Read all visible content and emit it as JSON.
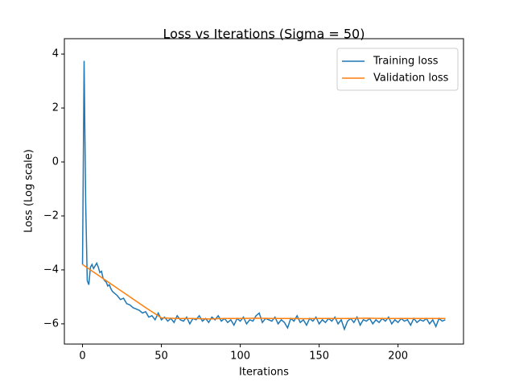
{
  "chart_data": {
    "type": "line",
    "title": "Loss vs Iterations (Sigma = 50)",
    "xlabel": "Iterations",
    "ylabel": "Loss (Log scale)",
    "x": [
      0,
      1,
      2,
      3,
      4,
      5,
      6,
      7,
      8,
      9,
      10,
      11,
      12,
      13,
      14,
      15,
      16,
      17,
      18,
      19,
      20,
      22,
      24,
      26,
      28,
      30,
      32,
      34,
      36,
      38,
      40,
      42,
      44,
      46,
      48,
      50,
      52,
      54,
      56,
      58,
      60,
      62,
      64,
      66,
      68,
      70,
      72,
      74,
      76,
      78,
      80,
      82,
      84,
      86,
      88,
      90,
      92,
      94,
      96,
      98,
      100,
      102,
      104,
      106,
      108,
      110,
      112,
      114,
      116,
      118,
      120,
      122,
      124,
      126,
      128,
      130,
      132,
      134,
      136,
      138,
      140,
      142,
      144,
      146,
      148,
      150,
      152,
      154,
      156,
      158,
      160,
      162,
      164,
      166,
      168,
      170,
      172,
      174,
      176,
      178,
      180,
      182,
      184,
      186,
      188,
      190,
      192,
      194,
      196,
      198,
      200,
      202,
      204,
      206,
      208,
      210,
      212,
      214,
      216,
      218,
      220,
      222,
      224,
      226,
      228,
      230
    ],
    "series": [
      {
        "name": "Training loss",
        "color": "#1f77b4",
        "values": [
          -3.8,
          3.75,
          -1.5,
          -4.4,
          -4.55,
          -3.9,
          -3.8,
          -3.95,
          -3.85,
          -3.75,
          -3.9,
          -4.1,
          -4.05,
          -4.3,
          -4.4,
          -4.45,
          -4.6,
          -4.55,
          -4.7,
          -4.8,
          -4.85,
          -4.95,
          -5.1,
          -5.05,
          -5.25,
          -5.3,
          -5.4,
          -5.45,
          -5.5,
          -5.6,
          -5.55,
          -5.75,
          -5.7,
          -5.85,
          -5.6,
          -5.85,
          -5.75,
          -5.9,
          -5.8,
          -5.95,
          -5.7,
          -5.85,
          -5.9,
          -5.75,
          -6.0,
          -5.8,
          -5.85,
          -5.7,
          -5.9,
          -5.8,
          -5.95,
          -5.75,
          -5.85,
          -5.7,
          -5.9,
          -5.8,
          -5.95,
          -5.85,
          -6.05,
          -5.8,
          -5.9,
          -5.75,
          -6.0,
          -5.85,
          -5.9,
          -5.7,
          -5.6,
          -5.95,
          -5.8,
          -5.85,
          -5.9,
          -5.75,
          -6.0,
          -5.85,
          -5.95,
          -6.15,
          -5.8,
          -5.9,
          -5.7,
          -5.95,
          -5.85,
          -6.05,
          -5.8,
          -5.9,
          -5.75,
          -6.0,
          -5.85,
          -5.95,
          -5.8,
          -5.9,
          -5.75,
          -6.0,
          -5.85,
          -6.2,
          -5.9,
          -5.8,
          -5.95,
          -5.75,
          -6.05,
          -5.85,
          -5.9,
          -5.8,
          -6.0,
          -5.85,
          -5.95,
          -5.8,
          -5.9,
          -5.75,
          -6.0,
          -5.85,
          -5.95,
          -5.8,
          -5.9,
          -5.85,
          -6.05,
          -5.8,
          -5.95,
          -5.85,
          -5.9,
          -5.8,
          -6.0,
          -5.85,
          -6.1,
          -5.8,
          -5.9,
          -5.85
        ]
      },
      {
        "name": "Validation loss",
        "color": "#ff7f0e",
        "x": [
          0,
          10,
          20,
          30,
          40,
          50,
          60,
          70,
          80,
          90,
          100,
          110,
          120,
          130,
          140,
          150,
          160,
          170,
          180,
          190,
          200,
          210,
          220,
          230
        ],
        "values": [
          -3.8,
          -4.2,
          -4.6,
          -5.0,
          -5.4,
          -5.78,
          -5.8,
          -5.8,
          -5.82,
          -5.8,
          -5.8,
          -5.79,
          -5.8,
          -5.8,
          -5.81,
          -5.8,
          -5.8,
          -5.8,
          -5.79,
          -5.8,
          -5.8,
          -5.8,
          -5.8,
          -5.8
        ]
      }
    ],
    "xlim": [
      -11.5,
      241.5
    ],
    "xticks": [
      0,
      50,
      100,
      150,
      200
    ],
    "ylim": [
      -6.75,
      4.57
    ],
    "yticks": [
      {
        "value": -6,
        "label": "−6"
      },
      {
        "value": -4,
        "label": "−4"
      },
      {
        "value": -2,
        "label": "−2"
      },
      0,
      2,
      4
    ],
    "legend": "upper right",
    "grid": false
  }
}
